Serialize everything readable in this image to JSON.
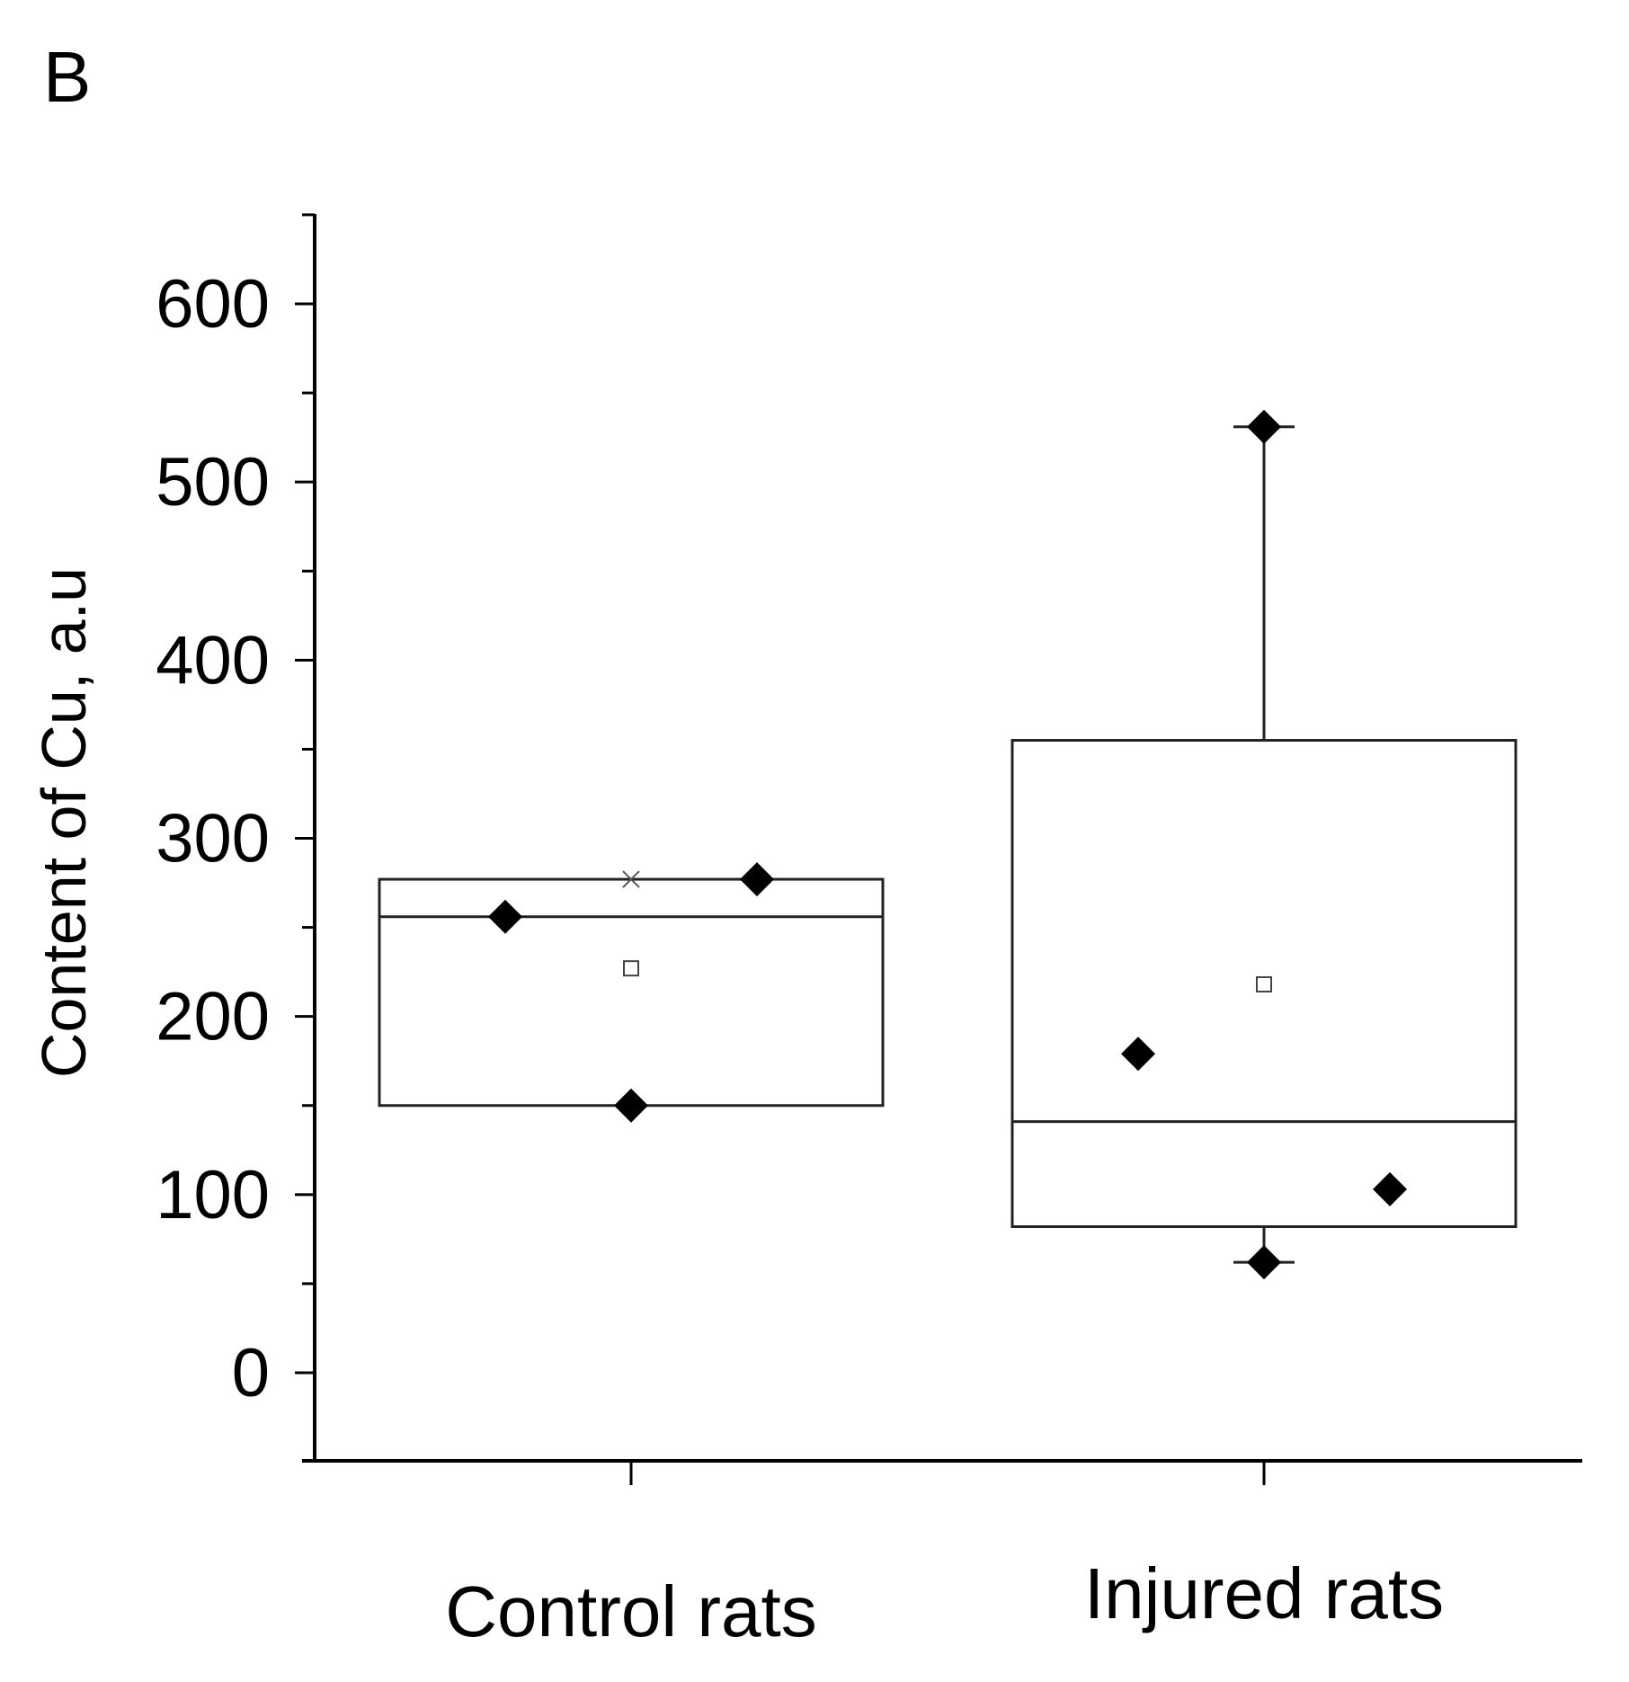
{
  "chart_data": {
    "type": "box",
    "panel_label": "B",
    "ylabel": "Content of Cu, a.u",
    "xlabel": "",
    "ylim": [
      -50,
      650
    ],
    "y_ticks": [
      0,
      100,
      200,
      300,
      400,
      500,
      600
    ],
    "y_tick_labels": [
      "0",
      "100",
      "200",
      "300",
      "400",
      "500",
      "600"
    ],
    "y_minor_step": 50,
    "categories": [
      "Control rats",
      "Injured rats"
    ],
    "boxes": [
      {
        "name": "Control rats",
        "q1": 150,
        "median": 256,
        "q3": 277,
        "mean": 227,
        "whisker_low": null,
        "whisker_high": null,
        "extreme_marker": 277,
        "points": [
          256,
          150,
          277
        ]
      },
      {
        "name": "Injured rats",
        "q1": 82,
        "median": 141,
        "q3": 355,
        "mean": 218,
        "whisker_low": 62,
        "whisker_high": 531,
        "extreme_marker": null,
        "points": [
          179,
          531,
          62,
          103
        ]
      }
    ],
    "grid": false,
    "legend": "none"
  }
}
